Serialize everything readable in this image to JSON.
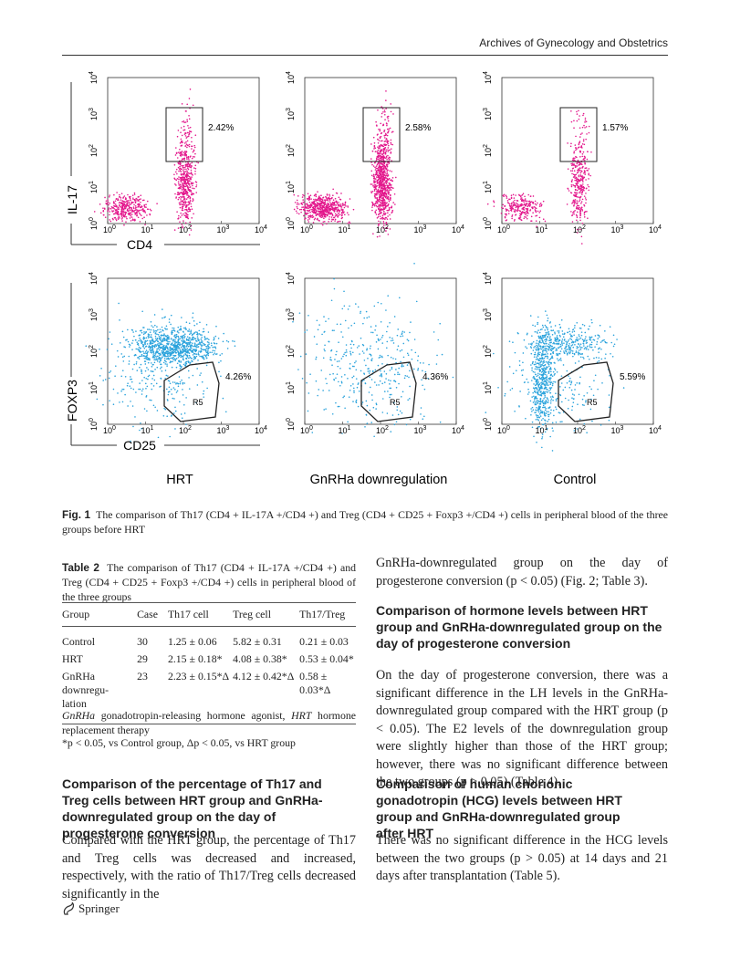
{
  "header": {
    "journal": "Archives of Gynecology and Obstetrics"
  },
  "figure": {
    "y_axis_top": "IL-17",
    "x_axis_top": "CD4",
    "y_axis_bottom": "FOXP3",
    "x_axis_bottom": "CD25",
    "tick_base": "10",
    "tick_exponents": [
      "0",
      "1",
      "2",
      "3",
      "4"
    ],
    "gate_label": "R5",
    "groups": [
      "HRT",
      "GnRHa downregulation",
      "Control"
    ],
    "top_percentages": [
      "2.42%",
      "2.58%",
      "1.57%"
    ],
    "bottom_percentages": [
      "4.26%",
      "4.36%",
      "5.59%"
    ],
    "caption_label": "Fig. 1",
    "caption": "The comparison of Th17 (CD4 + IL-17A +/CD4 +) and Treg (CD4 + CD25 + Foxp3 +/CD4 +) cells in peripheral blood of the three groups before HRT"
  },
  "table": {
    "label": "Table 2",
    "caption": "The comparison of Th17 (CD4 + IL-17A +/CD4 +) and Treg (CD4 + CD25 + Foxp3 +/CD4 +) cells in peripheral blood of the three groups",
    "columns": [
      "Group",
      "Case",
      "Th17 cell",
      "Treg cell",
      "Th17/Treg"
    ],
    "rows": [
      [
        "Control",
        "30",
        "1.25 ± 0.06",
        "5.82 ± 0.31",
        "0.21 ± 0.03"
      ],
      [
        "HRT",
        "29",
        "2.15 ± 0.18*",
        "4.08 ± 0.38*",
        "0.53 ± 0.04*"
      ],
      [
        "GnRHa downregu-lation",
        "23",
        "2.23 ± 0.15*Δ",
        "4.12 ± 0.42*Δ",
        "0.58 ± 0.03*Δ"
      ]
    ],
    "footnote_abbrev": [
      "GnRHa",
      " gonadotropin-releasing hormone agonist, ",
      "HRT",
      " hormone replacement therapy"
    ],
    "footnote_sig": "*p < 0.05, vs Control group, Δp < 0.05, vs HRT group"
  },
  "left": {
    "heading": "Comparison of the percentage of Th17 and Treg cells between HRT group and GnRHa-downregulated group on the day of progesterone conversion",
    "paragraph": "Compared with the HRT group, the percentage of Th17 and Treg cells was decreased and increased, respectively, with the ratio of Th17/Treg cells decreased significantly in the"
  },
  "right": {
    "paragraph1": "GnRHa-downregulated group on the day of progesterone conversion (p < 0.05) (Fig. 2; Table 3).",
    "heading1": "Comparison of hormone levels between HRT group and GnRHa-downregulated group on the day of progesterone conversion",
    "paragraph2": "On the day of progesterone conversion, there was a significant difference in the LH levels in the GnRHa-downregulated group compared with the HRT group (p < 0.05). The E2 levels of the downregulation group were slightly higher than those of the HRT group; however, there was no significant difference between the two groups (p > 0.05) (Table 4).",
    "heading2": "Comparison of human chorionic gonadotropin (HCG) levels between HRT group and GnRHa-downregulated group after HRT",
    "paragraph3": "There was no significant difference in the HCG levels between the two groups (p > 0.05) at 14 days and 21 days after transplantation (Table 5)."
  },
  "footer": {
    "publisher": "Springer"
  }
}
